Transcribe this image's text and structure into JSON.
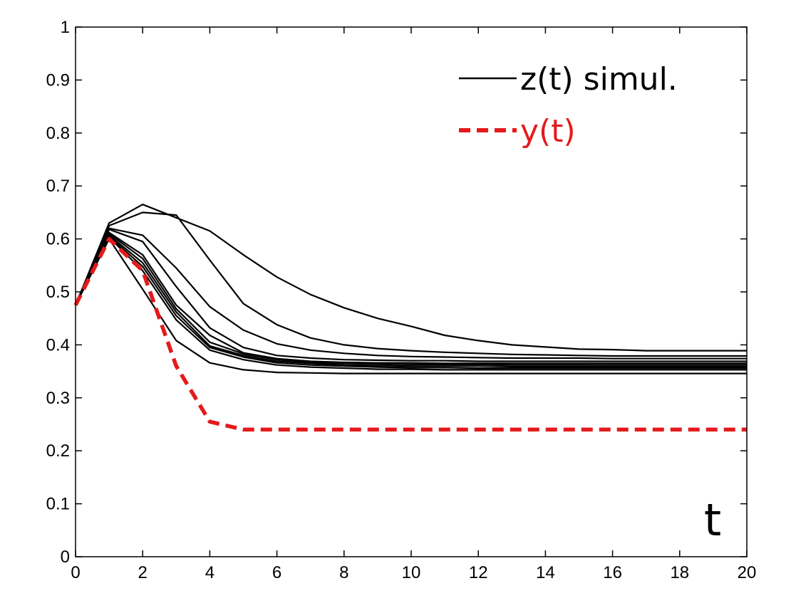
{
  "chart_data": {
    "type": "line",
    "xlabel": "t",
    "ylabel": "",
    "xlim": [
      0,
      20
    ],
    "ylim": [
      0,
      1
    ],
    "xticks": [
      "0",
      "2",
      "4",
      "6",
      "8",
      "10",
      "12",
      "14",
      "16",
      "18",
      "20"
    ],
    "yticks": [
      "0",
      "0.1",
      "0.2",
      "0.3",
      "0.4",
      "0.5",
      "0.6",
      "0.7",
      "0.8",
      "0.9",
      "1"
    ],
    "grid": false,
    "legend_position": "top-right",
    "legend": [
      {
        "label": "z(t) simul.",
        "color": "#000000",
        "style": "solid"
      },
      {
        "label": "y(t)",
        "color": "#e41a1c",
        "style": "dashed"
      }
    ],
    "x": [
      0,
      1,
      2,
      3,
      4,
      5,
      6,
      7,
      8,
      9,
      10,
      11,
      12,
      13,
      14,
      15,
      16,
      17,
      18,
      19,
      20
    ],
    "series": [
      {
        "name": "z(t) simul.",
        "color": "#000000",
        "style": "solid",
        "values": [
          0.475,
          0.63,
          0.665,
          0.64,
          0.615,
          0.57,
          0.528,
          0.495,
          0.47,
          0.45,
          0.435,
          0.418,
          0.408,
          0.4,
          0.396,
          0.392,
          0.391,
          0.389,
          0.389,
          0.389,
          0.389
        ]
      },
      {
        "name": "z(t) simul.",
        "color": "#000000",
        "style": "solid",
        "values": [
          0.475,
          0.625,
          0.65,
          0.645,
          0.56,
          0.478,
          0.438,
          0.413,
          0.4,
          0.393,
          0.389,
          0.386,
          0.384,
          0.382,
          0.381,
          0.38,
          0.379,
          0.379,
          0.379,
          0.379,
          0.379
        ]
      },
      {
        "name": "z(t) simul.",
        "color": "#000000",
        "style": "solid",
        "values": [
          0.475,
          0.62,
          0.607,
          0.545,
          0.472,
          0.428,
          0.402,
          0.39,
          0.384,
          0.38,
          0.378,
          0.377,
          0.376,
          0.375,
          0.375,
          0.375,
          0.374,
          0.374,
          0.374,
          0.374,
          0.374
        ]
      },
      {
        "name": "z(t) simul.",
        "color": "#000000",
        "style": "solid",
        "values": [
          0.475,
          0.618,
          0.595,
          0.51,
          0.432,
          0.395,
          0.38,
          0.375,
          0.372,
          0.371,
          0.37,
          0.37,
          0.369,
          0.369,
          0.369,
          0.369,
          0.369,
          0.369,
          0.369,
          0.369,
          0.369
        ]
      },
      {
        "name": "z(t) simul.",
        "color": "#000000",
        "style": "solid",
        "values": [
          0.475,
          0.612,
          0.57,
          0.475,
          0.418,
          0.385,
          0.374,
          0.369,
          0.367,
          0.366,
          0.366,
          0.365,
          0.365,
          0.365,
          0.365,
          0.365,
          0.365,
          0.365,
          0.365,
          0.365,
          0.365
        ]
      },
      {
        "name": "z(t) simul.",
        "color": "#000000",
        "style": "solid",
        "values": [
          0.475,
          0.61,
          0.563,
          0.468,
          0.405,
          0.383,
          0.372,
          0.367,
          0.365,
          0.364,
          0.363,
          0.363,
          0.363,
          0.362,
          0.362,
          0.362,
          0.362,
          0.362,
          0.362,
          0.362,
          0.362
        ]
      },
      {
        "name": "z(t) simul.",
        "color": "#000000",
        "style": "solid",
        "values": [
          0.475,
          0.607,
          0.555,
          0.462,
          0.398,
          0.38,
          0.369,
          0.365,
          0.362,
          0.361,
          0.36,
          0.36,
          0.36,
          0.359,
          0.359,
          0.359,
          0.359,
          0.359,
          0.359,
          0.359,
          0.359
        ]
      },
      {
        "name": "z(t) simul.",
        "color": "#000000",
        "style": "solid",
        "values": [
          0.475,
          0.605,
          0.548,
          0.455,
          0.395,
          0.377,
          0.366,
          0.362,
          0.36,
          0.358,
          0.357,
          0.357,
          0.356,
          0.356,
          0.356,
          0.356,
          0.356,
          0.356,
          0.356,
          0.356,
          0.356
        ]
      },
      {
        "name": "z(t) simul.",
        "color": "#000000",
        "style": "solid",
        "values": [
          0.475,
          0.603,
          0.54,
          0.447,
          0.39,
          0.372,
          0.362,
          0.358,
          0.356,
          0.354,
          0.354,
          0.353,
          0.353,
          0.353,
          0.353,
          0.353,
          0.353,
          0.353,
          0.353,
          0.353,
          0.353
        ]
      },
      {
        "name": "z(t) simul.",
        "color": "#000000",
        "style": "solid",
        "values": [
          0.475,
          0.6,
          0.505,
          0.408,
          0.366,
          0.353,
          0.348,
          0.347,
          0.346,
          0.346,
          0.346,
          0.346,
          0.346,
          0.346,
          0.346,
          0.346,
          0.346,
          0.346,
          0.346,
          0.346,
          0.346
        ]
      },
      {
        "name": "y(t)",
        "color": "#e41a1c",
        "style": "dashed",
        "values": [
          0.475,
          0.6,
          0.54,
          0.36,
          0.255,
          0.24,
          0.24,
          0.24,
          0.24,
          0.24,
          0.24,
          0.24,
          0.24,
          0.24,
          0.24,
          0.24,
          0.24,
          0.24,
          0.24,
          0.24,
          0.24
        ]
      }
    ]
  }
}
